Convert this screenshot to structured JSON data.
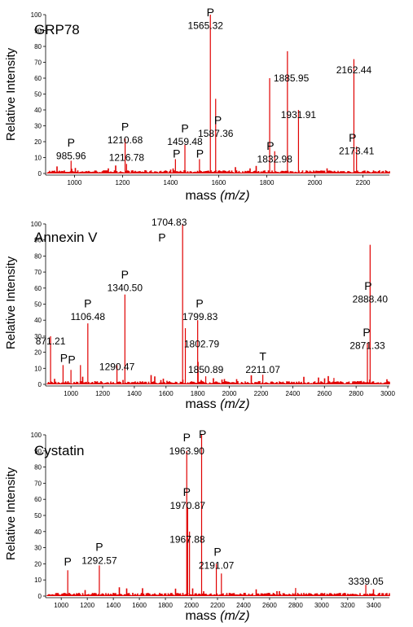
{
  "chart_data": [
    {
      "type": "line",
      "title": "GRP78",
      "xlabel": "mass",
      "xlabel_italic": "(m/z)",
      "ylabel": "Relative Intensity",
      "xlim": [
        880,
        2310
      ],
      "ylim": [
        0,
        100
      ],
      "x_ticks": [
        1000,
        1200,
        1400,
        1600,
        1800,
        2000,
        2200
      ],
      "y_ticks": [
        0,
        10,
        20,
        30,
        40,
        50,
        60,
        70,
        80,
        90,
        100
      ],
      "line_color": "#e00000",
      "peaks": [
        {
          "x": 985.96,
          "y": 8
        },
        {
          "x": 1210.68,
          "y": 22
        },
        {
          "x": 1216.78,
          "y": 6
        },
        {
          "x": 1420,
          "y": 9
        },
        {
          "x": 1459.48,
          "y": 18
        },
        {
          "x": 1520,
          "y": 9
        },
        {
          "x": 1565.32,
          "y": 100
        },
        {
          "x": 1587.36,
          "y": 47
        },
        {
          "x": 1812,
          "y": 60
        },
        {
          "x": 1832.98,
          "y": 14
        },
        {
          "x": 1885.95,
          "y": 77
        },
        {
          "x": 1931.91,
          "y": 40
        },
        {
          "x": 2162.44,
          "y": 72
        },
        {
          "x": 2173.41,
          "y": 17
        }
      ],
      "annotations": [
        {
          "text": "P",
          "x": 985.96,
          "y": 17
        },
        {
          "text": "985.96",
          "x": 985.96,
          "y": 9
        },
        {
          "text": "P",
          "x": 1210.68,
          "y": 27
        },
        {
          "text": "1210.68",
          "x": 1210.68,
          "y": 19
        },
        {
          "text": "1216.78",
          "x": 1216.78,
          "y": 8
        },
        {
          "text": "P",
          "x": 1459.48,
          "y": 26
        },
        {
          "text": "1459.48",
          "x": 1459.48,
          "y": 18
        },
        {
          "text": "P",
          "x": 1425,
          "y": 10
        },
        {
          "text": "P",
          "x": 1522,
          "y": 10
        },
        {
          "text": "P",
          "x": 1565.32,
          "y": 99
        },
        {
          "text": "1565.32",
          "x": 1545,
          "y": 91
        },
        {
          "text": "P",
          "x": 1597,
          "y": 31
        },
        {
          "text": "1587.36",
          "x": 1587.36,
          "y": 23
        },
        {
          "text": "1885.95",
          "x": 1902,
          "y": 58
        },
        {
          "text": "1931.91",
          "x": 1931.91,
          "y": 35
        },
        {
          "text": "P",
          "x": 1815,
          "y": 15
        },
        {
          "text": "1832.98",
          "x": 1832.98,
          "y": 7
        },
        {
          "text": "2162.44",
          "x": 2162.44,
          "y": 63
        },
        {
          "text": "P",
          "x": 2157,
          "y": 20
        },
        {
          "text": "2173.41",
          "x": 2173.41,
          "y": 12
        }
      ]
    },
    {
      "type": "line",
      "title": "Annexin V",
      "xlabel": "mass",
      "xlabel_italic": "(m/z)",
      "ylabel": "Relative Intensity",
      "xlim": [
        840,
        3010
      ],
      "ylim": [
        0,
        100
      ],
      "x_ticks": [
        1000,
        1200,
        1400,
        1600,
        1800,
        2000,
        2200,
        2400,
        2600,
        2800,
        3000
      ],
      "y_ticks": [
        0,
        10,
        20,
        30,
        40,
        50,
        60,
        70,
        80,
        90,
        100
      ],
      "line_color": "#e00000",
      "peaks": [
        {
          "x": 871.21,
          "y": 30
        },
        {
          "x": 950,
          "y": 12
        },
        {
          "x": 1000,
          "y": 9
        },
        {
          "x": 1060,
          "y": 12
        },
        {
          "x": 1106.48,
          "y": 38
        },
        {
          "x": 1290.47,
          "y": 12
        },
        {
          "x": 1340.5,
          "y": 56
        },
        {
          "x": 1704.83,
          "y": 100
        },
        {
          "x": 1722,
          "y": 35
        },
        {
          "x": 1799.83,
          "y": 40
        },
        {
          "x": 1802.79,
          "y": 14
        },
        {
          "x": 1850.89,
          "y": 5
        },
        {
          "x": 2211.07,
          "y": 6
        },
        {
          "x": 2660,
          "y": 4
        },
        {
          "x": 2871.33,
          "y": 26
        },
        {
          "x": 2888.4,
          "y": 87
        }
      ],
      "annotations": [
        {
          "text": "871.21",
          "x": 871.21,
          "y": 25
        },
        {
          "text": "P",
          "x": 955,
          "y": 14
        },
        {
          "text": "P",
          "x": 1005,
          "y": 13
        },
        {
          "text": "P",
          "x": 1106.48,
          "y": 48
        },
        {
          "text": "1106.48",
          "x": 1106.48,
          "y": 40
        },
        {
          "text": "1290.47",
          "x": 1290.47,
          "y": 9
        },
        {
          "text": "P",
          "x": 1340.5,
          "y": 66
        },
        {
          "text": "1340.50",
          "x": 1340.5,
          "y": 58
        },
        {
          "text": "1704.83",
          "x": 1620,
          "y": 99
        },
        {
          "text": "P",
          "x": 1575,
          "y": 89
        },
        {
          "text": "P",
          "x": 1812,
          "y": 48
        },
        {
          "text": "1799.83",
          "x": 1815,
          "y": 40
        },
        {
          "text": "1802.79",
          "x": 1825,
          "y": 23
        },
        {
          "text": "1850.89",
          "x": 1850.89,
          "y": 7
        },
        {
          "text": "T",
          "x": 2211.07,
          "y": 15
        },
        {
          "text": "2211.07",
          "x": 2211.07,
          "y": 7
        },
        {
          "text": "P",
          "x": 2876,
          "y": 59
        },
        {
          "text": "2888.40",
          "x": 2888.4,
          "y": 51
        },
        {
          "text": "P",
          "x": 2866,
          "y": 30
        },
        {
          "text": "2871.33",
          "x": 2871.33,
          "y": 22
        }
      ]
    },
    {
      "type": "line",
      "title": "Cystatin",
      "xlabel": "mass",
      "xlabel_italic": "(m/z)",
      "ylabel": "Relative Intensity",
      "xlim": [
        880,
        3520
      ],
      "ylim": [
        0,
        100
      ],
      "x_ticks": [
        1000,
        1200,
        1400,
        1600,
        1800,
        2000,
        2200,
        2400,
        2600,
        2800,
        3000,
        3200,
        3400
      ],
      "y_ticks": [
        0,
        10,
        20,
        30,
        40,
        50,
        60,
        70,
        80,
        90,
        100
      ],
      "line_color": "#e00000",
      "peaks": [
        {
          "x": 1050,
          "y": 16
        },
        {
          "x": 1292.57,
          "y": 19
        },
        {
          "x": 1963.9,
          "y": 90
        },
        {
          "x": 1967.88,
          "y": 35
        },
        {
          "x": 1970.87,
          "y": 55
        },
        {
          "x": 1985,
          "y": 40
        },
        {
          "x": 2078,
          "y": 100
        },
        {
          "x": 2191.07,
          "y": 20
        },
        {
          "x": 2230,
          "y": 14
        },
        {
          "x": 2800,
          "y": 5
        },
        {
          "x": 3339.05,
          "y": 7
        }
      ],
      "annotations": [
        {
          "text": "P",
          "x": 1050,
          "y": 19
        },
        {
          "text": "P",
          "x": 1292.57,
          "y": 28
        },
        {
          "text": "1292.57",
          "x": 1292.57,
          "y": 20
        },
        {
          "text": "P",
          "x": 1963.9,
          "y": 96
        },
        {
          "text": "1963.90",
          "x": 1963.9,
          "y": 88
        },
        {
          "text": "P",
          "x": 2085,
          "y": 98
        },
        {
          "text": "P",
          "x": 1963.9,
          "y": 62
        },
        {
          "text": "1970.87",
          "x": 1970.87,
          "y": 54
        },
        {
          "text": "1967.88",
          "x": 1967.88,
          "y": 33
        },
        {
          "text": "P",
          "x": 2200,
          "y": 25
        },
        {
          "text": "2191.07",
          "x": 2191.07,
          "y": 17
        },
        {
          "text": "3339.05",
          "x": 3339.05,
          "y": 7
        }
      ]
    }
  ]
}
